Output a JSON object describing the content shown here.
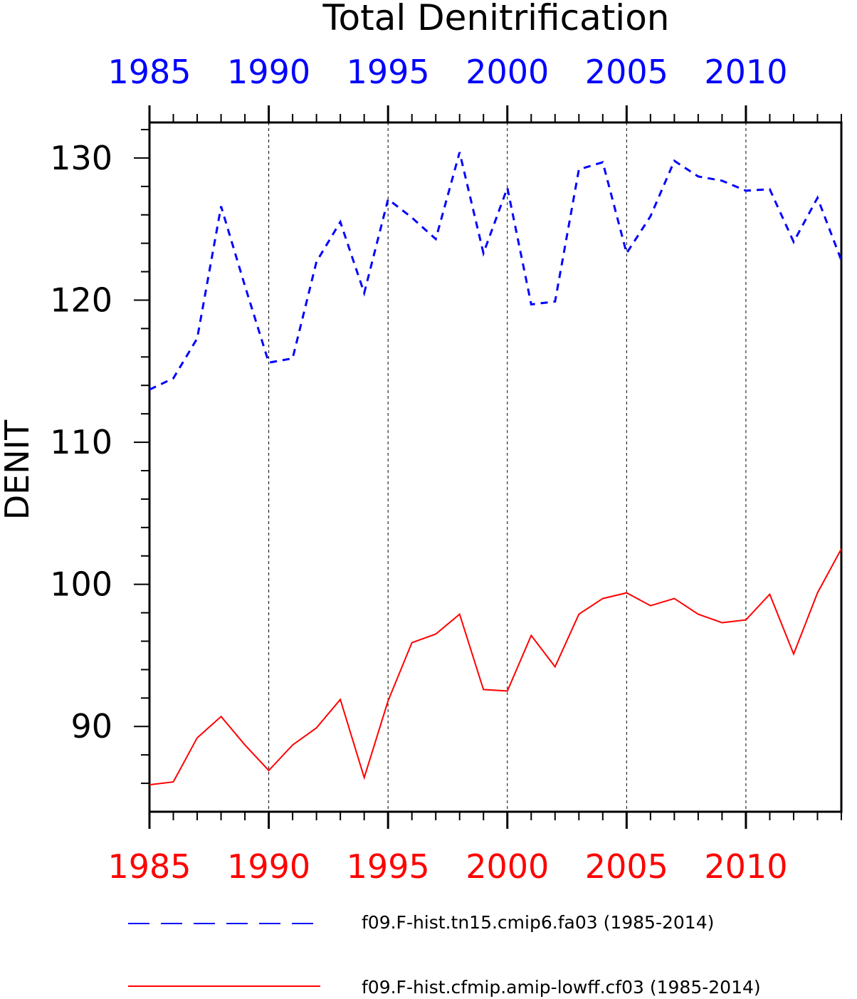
{
  "chart_data": {
    "type": "line",
    "title": "Total Denitrification",
    "ylabel": "DENIT",
    "xlim": [
      1985,
      2014
    ],
    "ylim": [
      84,
      132.5
    ],
    "y_ticks": [
      90,
      100,
      110,
      120,
      130
    ],
    "x_ticks": [
      1985,
      1990,
      1995,
      2000,
      2005,
      2010
    ],
    "x_tick_labels": [
      "1985",
      "1990",
      "1995",
      "2000",
      "2005",
      "2010"
    ],
    "grid": "vertical dashed lines at major x ticks",
    "legend_position": "bottom",
    "x": [
      1985,
      1986,
      1987,
      1988,
      1989,
      1990,
      1991,
      1992,
      1993,
      1994,
      1995,
      1996,
      1997,
      1998,
      1999,
      2000,
      2001,
      2002,
      2003,
      2004,
      2005,
      2006,
      2007,
      2008,
      2009,
      2010,
      2011,
      2012,
      2013,
      2014
    ],
    "series": [
      {
        "name": "f09.F-hist.tn15.cmip6.fa03 (1985-2014)",
        "color": "#0000ff",
        "dash": "dashed",
        "top_axis_color": "#0000ff",
        "values": [
          113.7,
          114.5,
          117.3,
          126.6,
          121.0,
          115.6,
          115.9,
          122.7,
          125.5,
          120.5,
          127.1,
          125.8,
          124.3,
          130.4,
          123.3,
          127.9,
          119.7,
          119.9,
          129.2,
          129.7,
          123.3,
          125.9,
          129.8,
          128.7,
          128.4,
          127.7,
          127.8,
          124.1,
          127.2,
          122.8
        ]
      },
      {
        "name": "f09.F-hist.cfmip.amip-lowff.cf03 (1985-2014)",
        "color": "#ff0000",
        "dash": "solid",
        "bottom_axis_color": "#ff0000",
        "values": [
          85.9,
          86.1,
          89.2,
          90.7,
          88.7,
          86.9,
          88.7,
          89.9,
          91.9,
          86.4,
          91.8,
          95.9,
          96.5,
          97.9,
          92.6,
          92.5,
          96.4,
          94.2,
          97.9,
          99.0,
          99.4,
          98.5,
          99.0,
          97.9,
          97.3,
          97.5,
          99.3,
          95.1,
          99.4,
          102.5
        ]
      }
    ]
  }
}
